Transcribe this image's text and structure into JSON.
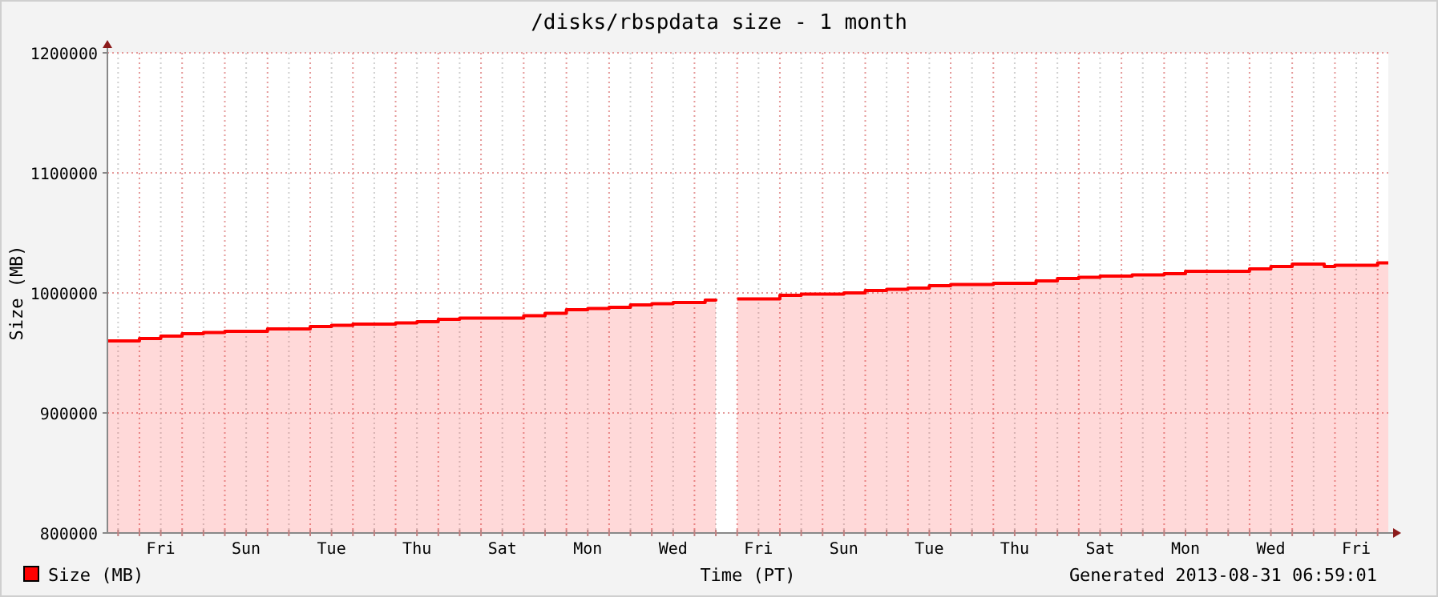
{
  "chart_data": {
    "type": "area",
    "title": "/disks/rbspdata size - 1 month",
    "xlabel": "Time (PT)",
    "ylabel": "Size (MB)",
    "annotations": [
      "Generated 2013-08-31 06:59:01"
    ],
    "ylim": [
      800000,
      1200000
    ],
    "yticks": [
      800000,
      900000,
      1000000,
      1100000,
      1200000
    ],
    "categories": [
      null,
      null,
      null,
      null,
      null,
      "Fri",
      null,
      null,
      null,
      null,
      null,
      null,
      null,
      "Sun",
      null,
      null,
      null,
      null,
      null,
      null,
      null,
      "Tue",
      null,
      null,
      null,
      null,
      null,
      null,
      null,
      "Thu",
      null,
      null,
      null,
      null,
      null,
      null,
      null,
      "Sat",
      null,
      null,
      null,
      null,
      null,
      null,
      null,
      "Mon",
      null,
      null,
      null,
      null,
      null,
      null,
      null,
      "Wed",
      null,
      null,
      null,
      null,
      null,
      null,
      null,
      "Fri",
      null,
      null,
      null,
      null,
      null,
      null,
      null,
      "Sun",
      null,
      null,
      null,
      null,
      null,
      null,
      null,
      "Tue",
      null,
      null,
      null,
      null,
      null,
      null,
      null,
      "Thu",
      null,
      null,
      null,
      null,
      null,
      null,
      null,
      "Sat",
      null,
      null,
      null,
      null,
      null,
      null,
      null,
      "Mon",
      null,
      null,
      null,
      null,
      null,
      null,
      null,
      "Wed",
      null,
      null,
      null,
      null,
      null,
      null,
      null,
      "Fri",
      null,
      null,
      null
    ],
    "grid": true,
    "legend": "bottom left",
    "series": [
      {
        "name": "Size (MB)",
        "color": "#ff0000",
        "values": [
          960000,
          960000,
          960000,
          962000,
          962000,
          964000,
          964000,
          966000,
          966000,
          967000,
          967000,
          968000,
          968000,
          968000,
          968000,
          970000,
          970000,
          970000,
          970000,
          972000,
          972000,
          973000,
          973000,
          974000,
          974000,
          974000,
          974000,
          975000,
          975000,
          976000,
          976000,
          978000,
          978000,
          979000,
          979000,
          979000,
          979000,
          979000,
          979000,
          981000,
          981000,
          983000,
          983000,
          986000,
          986000,
          987000,
          987000,
          988000,
          988000,
          990000,
          990000,
          991000,
          991000,
          992000,
          992000,
          992000,
          994000,
          995000,
          null,
          995000,
          995000,
          995000,
          995000,
          998000,
          998000,
          999000,
          999000,
          999000,
          999000,
          1000000,
          1000000,
          1002000,
          1002000,
          1003000,
          1003000,
          1004000,
          1004000,
          1006000,
          1006000,
          1007000,
          1007000,
          1007000,
          1007000,
          1008000,
          1008000,
          1008000,
          1008000,
          1010000,
          1010000,
          1012000,
          1012000,
          1013000,
          1013000,
          1014000,
          1014000,
          1014000,
          1015000,
          1015000,
          1015000,
          1016000,
          1016000,
          1018000,
          1018000,
          1018000,
          1018000,
          1018000,
          1018000,
          1020000,
          1020000,
          1022000,
          1022000,
          1024000,
          1024000,
          1024000,
          1022000,
          1023000,
          1023000,
          1023000,
          1023000,
          1025000,
          1025000
        ]
      }
    ]
  }
}
